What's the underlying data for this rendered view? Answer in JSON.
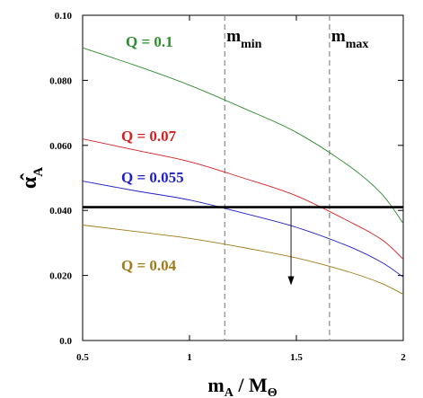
{
  "chart_data": {
    "type": "line",
    "xlabel": {
      "main": "m",
      "sub_main": "A",
      "sep": " / M",
      "sub_end": "Θ"
    },
    "ylabel": {
      "main": "α̂",
      "sub": "A"
    },
    "xlim": [
      0.5,
      2.0
    ],
    "ylim": [
      0.0,
      0.1
    ],
    "xticks": [
      0.5,
      1.0,
      1.5,
      2.0
    ],
    "xtick_labels": [
      "0.5",
      "1",
      "1.5",
      "2"
    ],
    "yticks": [
      0.0,
      0.02,
      0.04,
      0.06,
      0.08,
      0.1
    ],
    "ytick_labels": [
      "0.0",
      "0.020",
      "0.040",
      "0.060",
      "0.080",
      "0.10"
    ],
    "grid": false,
    "series": [
      {
        "name": "Q = 0.1",
        "color": "#2e8b2e",
        "x": [
          0.5,
          0.75,
          1.0,
          1.25,
          1.5,
          1.75,
          1.9,
          2.0
        ],
        "y": [
          0.09,
          0.0845,
          0.0785,
          0.0715,
          0.064,
          0.0535,
          0.045,
          0.036
        ]
      },
      {
        "name": "Q = 0.07",
        "color": "#d42020",
        "x": [
          0.5,
          0.75,
          1.0,
          1.25,
          1.5,
          1.75,
          1.9,
          2.0
        ],
        "y": [
          0.062,
          0.0585,
          0.055,
          0.05,
          0.0445,
          0.0365,
          0.031,
          0.025
        ]
      },
      {
        "name": "Q = 0.055",
        "color": "#2020c8",
        "x": [
          0.5,
          0.75,
          1.0,
          1.25,
          1.5,
          1.75,
          1.9,
          2.0
        ],
        "y": [
          0.049,
          0.046,
          0.0432,
          0.0392,
          0.0348,
          0.0288,
          0.024,
          0.0195
        ]
      },
      {
        "name": "Q = 0.04",
        "color": "#a07a18",
        "x": [
          0.5,
          0.75,
          1.0,
          1.25,
          1.5,
          1.75,
          1.9,
          2.0
        ],
        "y": [
          0.0355,
          0.0335,
          0.0314,
          0.0286,
          0.0254,
          0.021,
          0.0175,
          0.0142
        ]
      }
    ],
    "horizontal_line": {
      "y": 0.041,
      "color": "#000000"
    },
    "vertical_lines": [
      {
        "label_main": "m",
        "label_sub": "min",
        "x": 1.165
      },
      {
        "label_main": "m",
        "label_sub": "max",
        "x": 1.655
      }
    ],
    "arrow": {
      "x": 1.475,
      "y_from": 0.041,
      "y_to": 0.017
    }
  }
}
